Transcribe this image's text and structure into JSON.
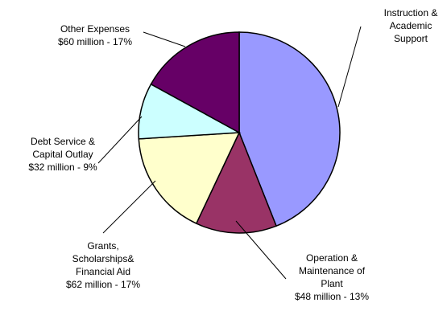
{
  "chart_data": {
    "type": "pie",
    "title": "",
    "slices": [
      {
        "key": "instruction",
        "label_lines": [
          "Instruction &",
          "Academic",
          "Support"
        ],
        "value_text": "",
        "percent": 44,
        "color": "#9999ff"
      },
      {
        "key": "operation",
        "label_lines": [
          "Operation &",
          "Maintenance of",
          "Plant",
          "$48 million - 13%"
        ],
        "value_text": "$48 million",
        "percent": 13,
        "color": "#993366"
      },
      {
        "key": "grants",
        "label_lines": [
          "Grants,",
          "Scholarships&",
          "Financial Aid",
          "$62 million - 17%"
        ],
        "value_text": "$62 million",
        "percent": 17,
        "color": "#ffffcc"
      },
      {
        "key": "debt",
        "label_lines": [
          "Debt Service &",
          "Capital Outlay",
          "$32 million - 9%"
        ],
        "value_text": "$32 million",
        "percent": 9,
        "color": "#ccffff"
      },
      {
        "key": "other",
        "label_lines": [
          "Other Expenses",
          "$60 million - 17%"
        ],
        "value_text": "$60 million",
        "percent": 17,
        "color": "#660066"
      }
    ]
  }
}
